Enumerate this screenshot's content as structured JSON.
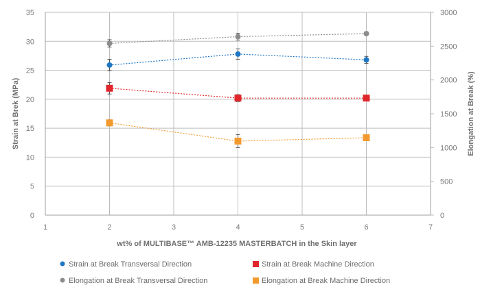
{
  "chart_data": {
    "type": "line",
    "xlabel": "wt% of MULTIBASE™ AMB-12235 MASTERBATCH in the Skin layer",
    "ylabel_left": "Strain at Brek (MPa)",
    "ylabel_right": "Elongation at Break (%)",
    "xlim": [
      1,
      7
    ],
    "x_ticks": [
      "1",
      "2",
      "3",
      "4",
      "5",
      "6",
      "7"
    ],
    "ylim_left": [
      0,
      35
    ],
    "y_left_ticks": [
      "0",
      "5",
      "10",
      "15",
      "20",
      "25",
      "30",
      "35"
    ],
    "ylim_right": [
      0,
      3000
    ],
    "y_right_ticks": [
      "0",
      "500",
      "1000",
      "1500",
      "2000",
      "2500",
      "3000"
    ],
    "grid": "vertical and horizontal",
    "legend_position": "bottom",
    "series": [
      {
        "name": "Strain at Break Transversal Direction",
        "axis": "left",
        "marker": "circle",
        "color": "#1f77c4",
        "x": [
          2,
          4,
          6
        ],
        "y": [
          25.9,
          27.8,
          26.8
        ],
        "err": [
          1.0,
          0.9,
          0.6
        ]
      },
      {
        "name": "Strain at Break Machine Direction",
        "axis": "left",
        "marker": "square",
        "color": "#e0262b",
        "x": [
          2,
          4,
          6
        ],
        "y": [
          21.9,
          20.2,
          20.2
        ],
        "err": [
          1.0,
          0.6,
          0.4
        ]
      },
      {
        "name": "Elongation at Break Transversal Direction",
        "axis": "right",
        "marker": "circle",
        "color": "#8c8c8c",
        "x": [
          2,
          4,
          6
        ],
        "y": [
          2540,
          2640,
          2685
        ],
        "err": [
          55,
          50,
          25
        ]
      },
      {
        "name": "Elongation at Break Machine Direction",
        "axis": "right",
        "marker": "square",
        "color": "#f29a2e",
        "x": [
          2,
          4,
          6
        ],
        "y": [
          1365,
          1095,
          1145
        ],
        "err": [
          45,
          95,
          40
        ]
      }
    ]
  }
}
